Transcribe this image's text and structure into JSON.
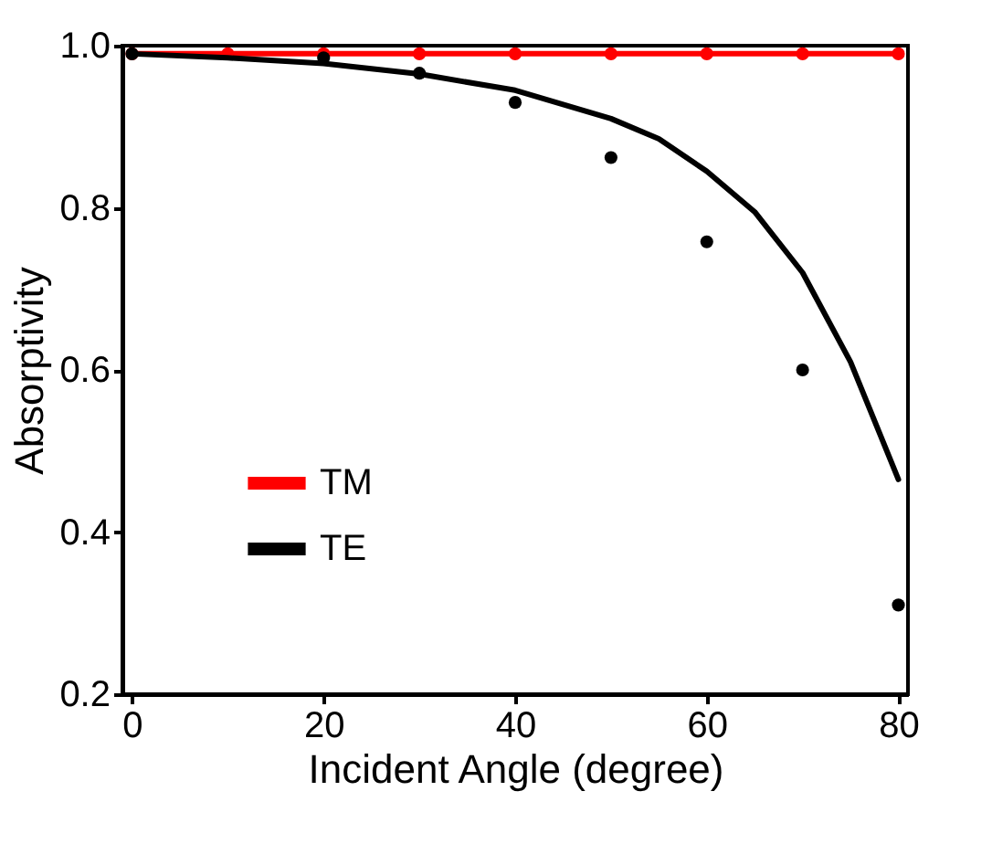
{
  "chart_data": {
    "type": "line",
    "xlabel": "Incident Angle (degree)",
    "ylabel": "Absorptivity",
    "xlim": [
      -1,
      81
    ],
    "xticks": [
      0,
      20,
      40,
      60,
      80
    ],
    "ylim": [
      0.2,
      1.0
    ],
    "yticks": [
      0.2,
      0.4,
      0.6,
      0.8,
      {
        "value": 1.0,
        "label": "1.0"
      }
    ],
    "grid": false,
    "legend": "bottom left",
    "series": [
      {
        "name": "TM",
        "color": "#ff0000",
        "marker": "circle",
        "x": [
          0,
          10,
          20,
          30,
          40,
          50,
          60,
          70,
          80
        ],
        "values": [
          0.99,
          0.99,
          0.99,
          0.99,
          0.99,
          0.99,
          0.99,
          0.99,
          0.99
        ]
      },
      {
        "name": "TE",
        "color": "#000000",
        "marker": "none",
        "x": [
          0,
          10,
          20,
          30,
          40,
          50,
          55,
          60,
          65,
          70,
          75,
          80
        ],
        "values": [
          0.99,
          0.985,
          0.978,
          0.965,
          0.945,
          0.91,
          0.885,
          0.845,
          0.795,
          0.72,
          0.61,
          0.465
        ]
      },
      {
        "color": "#000000",
        "type": "scatter",
        "marker": "circle",
        "x": [
          0,
          20,
          30,
          40,
          50,
          60,
          70,
          80
        ],
        "values": [
          0.99,
          0.985,
          0.966,
          0.93,
          0.862,
          0.758,
          0.6,
          0.31
        ]
      }
    ]
  }
}
